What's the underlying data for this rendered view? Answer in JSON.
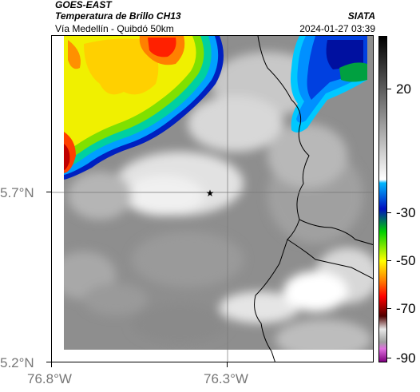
{
  "header": {
    "title": "GOES-EAST",
    "subtitle": "Temperatura de Brillo CH13",
    "organization": "SIATA",
    "region": "Vía Medellín - Quibdó 50km",
    "datetime": "2024-01-27 03:39"
  },
  "map": {
    "lat_labels": [
      "5.7°N",
      "5.2°N"
    ],
    "lon_labels": [
      "76.8°W",
      "76.3°W"
    ],
    "marker": "star-marker",
    "background_color": "#8c8c8c",
    "grid_color": "#777777"
  },
  "colorbar": {
    "tick_labels": [
      "20",
      "-30",
      "-50",
      "-70",
      "-90"
    ],
    "colors": [
      "#000000",
      "#ffffff",
      "#00b0ff",
      "#0010c0",
      "#00d000",
      "#ffff00",
      "#ff8000",
      "#ff0000",
      "#800000",
      "#e0e0e0",
      "#c000c0"
    ]
  }
}
